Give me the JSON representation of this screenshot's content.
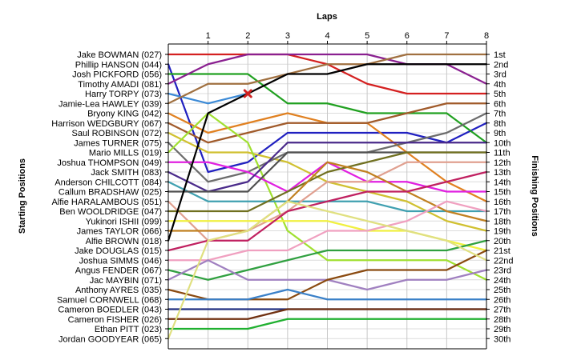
{
  "chart_data": {
    "type": "line",
    "title": "Laps",
    "xlabel": "Laps",
    "ylabel_left": "Starting Positions",
    "ylabel_right": "Finishing Positions",
    "x": [
      0,
      1,
      2,
      3,
      4,
      5,
      6,
      7,
      8
    ],
    "x_tick_labels": [
      "1",
      "2",
      "3",
      "4",
      "5",
      "6",
      "7",
      "8"
    ],
    "ylim": [
      1,
      30
    ],
    "grid": true,
    "start_labels": [
      "Jake BOWMAN (027)",
      "Phillip HANSON (044)",
      "Josh PICKFORD (056)",
      "Timothy AMADI (081)",
      "Harry TORPY (073)",
      "Jamie-Lea HAWLEY (039)",
      "Bryony KING (042)",
      "Harrison WEDGBURY (067)",
      "Saul ROBINSON (072)",
      "James TURNER (075)",
      "Mario MILLS (019)",
      "Joshua THOMPSON (049)",
      "Jack SMITH (083)",
      "Anderson CHILCOTT (084)",
      "Callum BRADSHAW (025)",
      "Alfie HARALAMBOUS (051)",
      "Ben WOOLDRIDGE (047)",
      "Yukinori ISHII (099)",
      "James TAYLOR (066)",
      "Alfie BROWN (018)",
      "Jake DOUGLAS (015)",
      "Joshua SIMMS (046)",
      "Angus FENDER (067)",
      "Jac MAYBIN (071)",
      "Anthony AYRES (035)",
      "Samuel CORNWELL (068)",
      "Cameron BOEDLER (043)",
      "Cameron FISHER (026)",
      "Ethan PITT (023)",
      "Jordan GOODYEAR (065)"
    ],
    "finish_labels": [
      "1st",
      "2nd",
      "3rd",
      "4th",
      "5th",
      "6th",
      "7th",
      "8th",
      "9th",
      "10th",
      "11th",
      "12th",
      "13th",
      "14th",
      "15th",
      "16th",
      "17th",
      "18th",
      "19th",
      "20th",
      "21st",
      "22nd",
      "23rd",
      "24th",
      "25th",
      "26th",
      "27th",
      "28th",
      "29th",
      "30th"
    ],
    "series": [
      {
        "color": "#d42020",
        "values": [
          1,
          1,
          1,
          1,
          2,
          4,
          5,
          5,
          5
        ]
      },
      {
        "color": "#2020c0",
        "values": [
          2,
          13,
          12,
          9,
          9,
          9,
          9,
          10,
          8
        ]
      },
      {
        "color": "#20a020",
        "values": [
          3,
          3,
          3,
          6,
          6,
          7,
          7,
          7,
          10
        ]
      },
      {
        "color": "#8a2090",
        "values": [
          4,
          2,
          1,
          1,
          1,
          1,
          2,
          2,
          4
        ]
      },
      {
        "color": "#3c8ad6",
        "values": [
          5,
          6,
          5,
          null,
          null,
          null,
          null,
          null,
          null
        ]
      },
      {
        "color": "#a07040",
        "values": [
          6,
          4,
          4,
          3,
          2,
          2,
          1,
          1,
          1
        ]
      },
      {
        "color": "#e08020",
        "values": [
          7,
          9,
          8,
          7,
          8,
          8,
          11,
          14,
          16
        ]
      },
      {
        "color": "#a05a2a",
        "values": [
          8,
          10,
          9,
          8,
          8,
          8,
          7,
          6,
          6
        ]
      },
      {
        "color": "#d0c030",
        "values": [
          9,
          11,
          11,
          12,
          14,
          15,
          16,
          18,
          19
        ]
      },
      {
        "color": "#6c6c6c",
        "values": [
          10,
          14,
          13,
          11,
          11,
          11,
          10,
          9,
          7
        ]
      },
      {
        "color": "#a0e030",
        "values": [
          11,
          7,
          10,
          19,
          22,
          22,
          22,
          22,
          24
        ]
      },
      {
        "color": "#e020e0",
        "values": [
          12,
          12,
          13,
          15,
          12,
          14,
          14,
          15,
          15
        ]
      },
      {
        "color": "#4a2a8a",
        "values": [
          13,
          15,
          14,
          10,
          10,
          10,
          10,
          10,
          10
        ]
      },
      {
        "color": "#40a0b0",
        "values": [
          14,
          16,
          16,
          16,
          16,
          16,
          17,
          17,
          17
        ]
      },
      {
        "color": "#505050",
        "values": [
          15,
          15,
          15,
          11,
          11,
          11,
          11,
          11,
          11
        ]
      },
      {
        "color": "#e0a090",
        "values": [
          16,
          20,
          19,
          17,
          14,
          14,
          12,
          12,
          12
        ]
      },
      {
        "color": "#707020",
        "values": [
          17,
          17,
          17,
          15,
          13,
          12,
          11,
          11,
          11
        ]
      },
      {
        "color": "#f0f040",
        "values": [
          18,
          18,
          18,
          18,
          18,
          19,
          19,
          20,
          21
        ]
      },
      {
        "color": "#c08020",
        "values": [
          19,
          19,
          19,
          16,
          12,
          13,
          15,
          17,
          18
        ]
      },
      {
        "color": "#000000",
        "values": [
          20,
          7,
          5,
          3,
          3,
          2,
          2,
          2,
          2
        ]
      },
      {
        "color": "#c02060",
        "values": [
          21,
          20,
          20,
          17,
          16,
          15,
          15,
          14,
          13
        ]
      },
      {
        "color": "#f0a0c0",
        "values": [
          22,
          22,
          21,
          21,
          19,
          19,
          18,
          16,
          17
        ]
      },
      {
        "color": "#30a040",
        "values": [
          23,
          24,
          23,
          22,
          21,
          21,
          21,
          21,
          20
        ]
      },
      {
        "color": "#a080c0",
        "values": [
          24,
          22,
          24,
          24,
          24,
          25,
          24,
          24,
          23
        ]
      },
      {
        "color": "#8a4a10",
        "values": [
          25,
          26,
          26,
          26,
          24,
          23,
          23,
          23,
          21
        ]
      },
      {
        "color": "#3a80c8",
        "values": [
          26,
          26,
          26,
          25,
          26,
          26,
          26,
          26,
          26
        ]
      },
      {
        "color": "#203080",
        "values": [
          27,
          27,
          27,
          27,
          27,
          27,
          27,
          27,
          27
        ]
      },
      {
        "color": "#703010",
        "values": [
          28,
          28,
          28,
          27,
          27,
          27,
          27,
          27,
          27
        ]
      },
      {
        "color": "#20b030",
        "values": [
          29,
          29,
          29,
          28,
          28,
          28,
          28,
          28,
          28
        ]
      },
      {
        "color": "#e0e080",
        "values": [
          30,
          20,
          19,
          16,
          17,
          18,
          19,
          20,
          22
        ]
      }
    ],
    "retirement_marker": {
      "series_index": 4,
      "lap": 2,
      "position": 5,
      "color": "#d02020",
      "symbol": "x"
    }
  }
}
